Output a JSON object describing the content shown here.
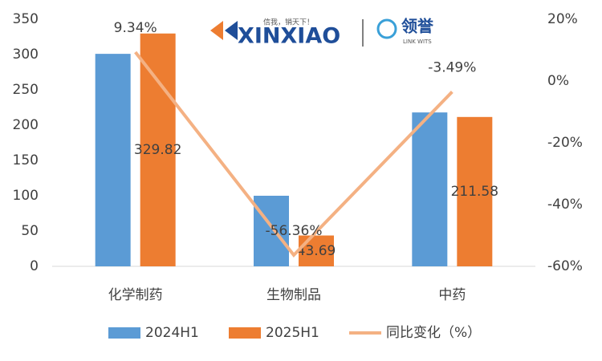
{
  "chart_data": {
    "type": "bar_line",
    "categories": [
      "化学制药",
      "生物制品",
      "中药"
    ],
    "series": [
      {
        "name": "2024H1",
        "type": "bar",
        "color": "#5b9bd5",
        "values": [
          301,
          100,
          218
        ]
      },
      {
        "name": "2025H1",
        "type": "bar",
        "color": "#ed7d31",
        "values": [
          329.82,
          43.69,
          211.58
        ]
      },
      {
        "name": "同比变化（%）",
        "type": "line",
        "axis": "y2",
        "color": "#f4b183",
        "values": [
          9.34,
          -56.36,
          -3.49
        ],
        "value_labels": [
          "9.34%",
          "-56.36%",
          "-3.49%"
        ]
      }
    ],
    "ylim": [
      0,
      350
    ],
    "yticks": [
      0,
      50,
      100,
      150,
      200,
      250,
      300,
      350
    ],
    "y2lim": [
      -60,
      20
    ],
    "y2ticks": [
      {
        "value": -60,
        "label": "-60%"
      },
      {
        "value": -40,
        "label": "-40%"
      },
      {
        "value": -20,
        "label": "-20%"
      },
      {
        "value": 0,
        "label": "0%"
      },
      {
        "value": 20,
        "label": "20%"
      }
    ],
    "grid": false,
    "legend": "bottom"
  },
  "logo": {
    "brand": "XINXIAO",
    "slogan": "信我，销天下！",
    "partner": "领誉",
    "partner_sub": "LINK WITS"
  }
}
